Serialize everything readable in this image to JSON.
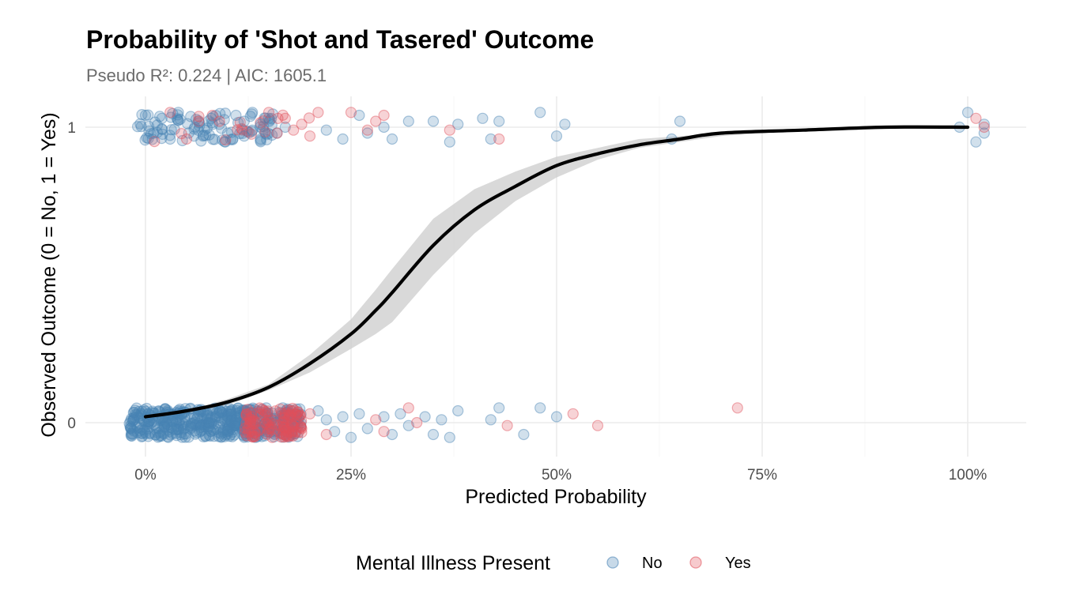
{
  "chart_data": {
    "type": "scatter",
    "title": "Probability of 'Shot and Tasered' Outcome",
    "subtitle": "Pseudo R²: 0.224 | AIC: 1605.1",
    "xlabel": "Predicted Probability",
    "ylabel": "Observed Outcome (0 = No, 1 = Yes)",
    "xlim": [
      -0.03,
      1.07
    ],
    "ylim": [
      -0.12,
      1.1
    ],
    "x_ticks": [
      0,
      0.25,
      0.5,
      0.75,
      1.0
    ],
    "x_tick_labels": [
      "0%",
      "25%",
      "50%",
      "75%",
      "100%"
    ],
    "y_ticks": [
      0,
      1
    ],
    "y_tick_labels": [
      "0",
      "1"
    ],
    "grid": true,
    "legend": {
      "title": "Mental Illness Present",
      "position": "bottom",
      "entries": [
        {
          "label": "No",
          "color": "#4682b4"
        },
        {
          "label": "Yes",
          "color": "#e0505a"
        }
      ]
    },
    "series": [
      {
        "name": "No",
        "color": "#4682b4",
        "points": [
          [
            0.0,
            1.04
          ],
          [
            0.01,
            0.98
          ],
          [
            0.02,
            1.03
          ],
          [
            0.03,
            0.96
          ],
          [
            0.04,
            1.05
          ],
          [
            0.06,
            1.0
          ],
          [
            0.07,
            0.97
          ],
          [
            0.08,
            1.03
          ],
          [
            0.09,
            1.01
          ],
          [
            0.1,
            0.98
          ],
          [
            0.11,
            1.04
          ],
          [
            0.12,
            0.97
          ],
          [
            0.12,
            1.02
          ],
          [
            0.13,
            0.99
          ],
          [
            0.13,
            1.05
          ],
          [
            0.14,
            0.96
          ],
          [
            0.14,
            1.01
          ],
          [
            0.15,
            1.03
          ],
          [
            0.16,
            0.98
          ],
          [
            0.17,
            1.0
          ],
          [
            0.22,
            0.99
          ],
          [
            0.24,
            0.96
          ],
          [
            0.26,
            1.04
          ],
          [
            0.27,
            0.98
          ],
          [
            0.29,
            1.0
          ],
          [
            0.3,
            0.96
          ],
          [
            0.32,
            1.02
          ],
          [
            0.35,
            1.02
          ],
          [
            0.37,
            0.95
          ],
          [
            0.38,
            1.01
          ],
          [
            0.41,
            1.03
          ],
          [
            0.42,
            0.96
          ],
          [
            0.43,
            1.02
          ],
          [
            0.48,
            1.05
          ],
          [
            0.5,
            0.97
          ],
          [
            0.51,
            1.01
          ],
          [
            0.64,
            0.96
          ],
          [
            0.65,
            1.02
          ],
          [
            0.99,
            1.0
          ],
          [
            1.0,
            1.05
          ],
          [
            1.01,
            0.95
          ],
          [
            1.02,
            0.98
          ],
          [
            1.02,
            1.01
          ],
          [
            0.21,
            0.04
          ],
          [
            0.22,
            0.01
          ],
          [
            0.23,
            -0.03
          ],
          [
            0.24,
            0.02
          ],
          [
            0.25,
            -0.05
          ],
          [
            0.26,
            0.03
          ],
          [
            0.27,
            -0.02
          ],
          [
            0.29,
            0.02
          ],
          [
            0.3,
            -0.04
          ],
          [
            0.31,
            0.03
          ],
          [
            0.32,
            -0.01
          ],
          [
            0.34,
            0.02
          ],
          [
            0.35,
            -0.04
          ],
          [
            0.36,
            0.01
          ],
          [
            0.37,
            -0.05
          ],
          [
            0.38,
            0.04
          ],
          [
            0.42,
            0.01
          ],
          [
            0.43,
            0.05
          ],
          [
            0.46,
            -0.04
          ],
          [
            0.48,
            0.05
          ],
          [
            0.5,
            0.02
          ]
        ],
        "dense_cluster": {
          "x_range": [
            -0.02,
            0.19
          ],
          "y_values": [
            0
          ]
        }
      },
      {
        "name": "Yes",
        "color": "#e0505a",
        "points": [
          [
            0.03,
            1.05
          ],
          [
            0.05,
            0.96
          ],
          [
            0.09,
            1.02
          ],
          [
            0.15,
            1.05
          ],
          [
            0.16,
            0.98
          ],
          [
            0.17,
            1.03
          ],
          [
            0.18,
            0.99
          ],
          [
            0.19,
            1.01
          ],
          [
            0.2,
            0.97
          ],
          [
            0.21,
            1.05
          ],
          [
            0.25,
            1.05
          ],
          [
            0.27,
            0.99
          ],
          [
            0.28,
            1.02
          ],
          [
            0.29,
            1.04
          ],
          [
            0.37,
            0.99
          ],
          [
            0.43,
            0.96
          ],
          [
            1.01,
            1.03
          ],
          [
            1.02,
            1.0
          ],
          [
            0.19,
            -0.02
          ],
          [
            0.2,
            0.03
          ],
          [
            0.22,
            -0.04
          ],
          [
            0.28,
            0.01
          ],
          [
            0.29,
            -0.03
          ],
          [
            0.32,
            0.05
          ],
          [
            0.33,
            0.0
          ],
          [
            0.44,
            -0.01
          ],
          [
            0.52,
            0.03
          ],
          [
            0.55,
            -0.01
          ],
          [
            0.72,
            0.05
          ]
        ],
        "dense_cluster": {
          "x_range": [
            0.12,
            0.19
          ],
          "y_values": [
            0
          ]
        }
      }
    ],
    "fit_curve": {
      "type": "logistic",
      "x_range": [
        0.0,
        1.0
      ],
      "points": [
        [
          0.0,
          0.02
        ],
        [
          0.05,
          0.04
        ],
        [
          0.1,
          0.07
        ],
        [
          0.15,
          0.12
        ],
        [
          0.2,
          0.2
        ],
        [
          0.25,
          0.3
        ],
        [
          0.28,
          0.38
        ],
        [
          0.3,
          0.44
        ],
        [
          0.35,
          0.6
        ],
        [
          0.4,
          0.72
        ],
        [
          0.45,
          0.8
        ],
        [
          0.5,
          0.87
        ],
        [
          0.55,
          0.91
        ],
        [
          0.6,
          0.94
        ],
        [
          0.65,
          0.96
        ],
        [
          0.7,
          0.98
        ],
        [
          0.8,
          0.99
        ],
        [
          0.9,
          1.0
        ],
        [
          1.0,
          1.0
        ]
      ],
      "band_lower": [
        0.02,
        0.03,
        0.06,
        0.11,
        0.17,
        0.25,
        0.3,
        0.34,
        0.5,
        0.64,
        0.75,
        0.83,
        0.89,
        0.93,
        0.95,
        0.97,
        0.99,
        1.0,
        1.0
      ],
      "band_upper": [
        0.02,
        0.04,
        0.08,
        0.13,
        0.23,
        0.35,
        0.45,
        0.52,
        0.69,
        0.79,
        0.85,
        0.9,
        0.93,
        0.96,
        0.97,
        0.98,
        0.99,
        1.0,
        1.0
      ]
    }
  }
}
